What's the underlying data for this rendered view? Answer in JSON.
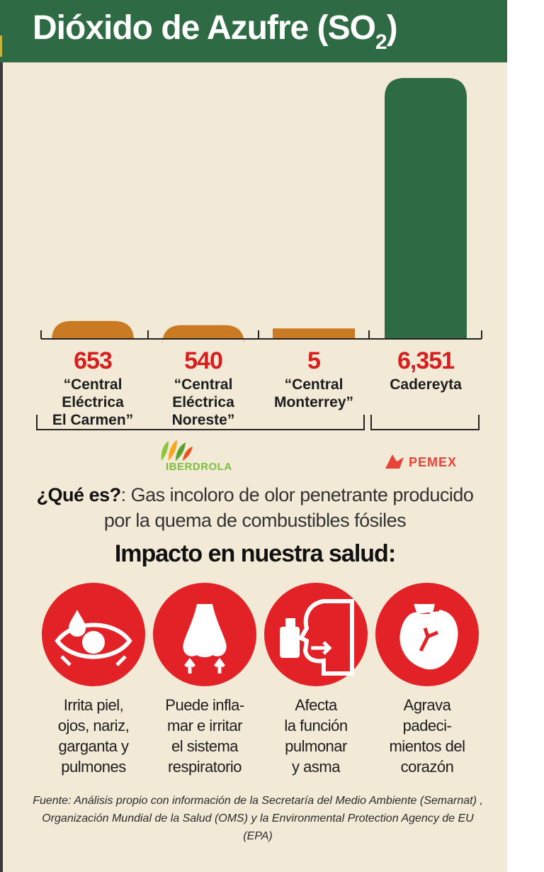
{
  "header": {
    "title_main": "Dióxido de Azufre (SO",
    "title_sub": "2",
    "title_close": ")"
  },
  "chart_data": {
    "type": "bar",
    "categories": [
      "“Central Eléctrica El Carmen”",
      "“Central Eléctrica Noreste”",
      "“Central Monterrey”",
      "Cadereyta"
    ],
    "values": [
      653,
      540,
      5,
      6351
    ],
    "value_labels": [
      "653",
      "540",
      "5",
      "6,351"
    ],
    "category_lines": [
      [
        "“Central",
        "Eléctrica",
        "El Carmen”"
      ],
      [
        "“Central",
        "Eléctrica",
        "Noreste”"
      ],
      [
        "“Central",
        "Monterrey”"
      ],
      [
        "Cadereyta"
      ]
    ],
    "bar_colors": [
      "#c97a22",
      "#c97a22",
      "#c97a22",
      "#2e6b45"
    ],
    "groups": [
      "IBERDROLA",
      "PEMEX"
    ],
    "title": "Dióxido de Azufre (SO2)",
    "xlabel": "",
    "ylabel": "",
    "ylim": [
      0,
      6351
    ],
    "grid": false,
    "legend": "none"
  },
  "logos": {
    "iberdrola": "IBERDROLA",
    "pemex": "PEMEX"
  },
  "definition": {
    "question": "¿Qué es?",
    "answer": ": Gas incoloro de olor penetrante producido por la quema de combustibles fósiles"
  },
  "impact": {
    "title": "Impacto en nuestra salud:",
    "items": [
      {
        "icon": "eye-icon",
        "lines": [
          "Irrita piel,",
          "ojos, nariz,",
          "garganta y",
          "pulmones"
        ]
      },
      {
        "icon": "nose-icon",
        "lines": [
          "Puede infla-",
          "mar e irritar",
          "el sistema",
          "respiratorio"
        ]
      },
      {
        "icon": "lungs-face-icon",
        "lines": [
          "Afecta",
          "la función",
          "pulmonar",
          "y asma"
        ]
      },
      {
        "icon": "heart-icon",
        "lines": [
          "Agrava",
          "padeci-",
          "mientos del",
          "corazón"
        ]
      }
    ]
  },
  "source": {
    "text": "Fuente: Análisis propio con información de la Secretaría del Medio Ambiente (Semarnat) , Organización Mundial de la Salud (OMS) y la Environmental Protection Agency de EU (EPA)"
  },
  "colors": {
    "header_green": "#2e6b45",
    "bar_orange": "#c97a22",
    "bar_green": "#2e6b45",
    "value_red": "#d81e1e",
    "circle_red": "#e32227",
    "panel_bg": "#f2ead6"
  }
}
